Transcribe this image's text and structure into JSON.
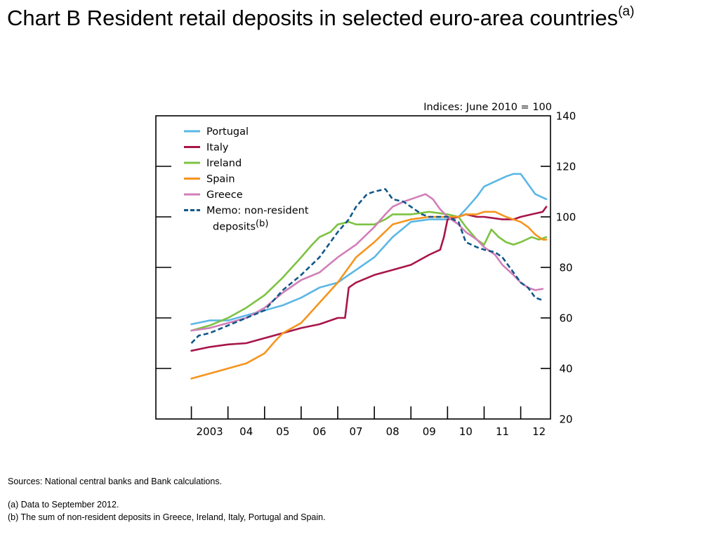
{
  "title": {
    "main": "Chart B  Resident retail deposits in selected euro-area countries",
    "sup": "(a)"
  },
  "notes": {
    "sources": "Sources:  National central banks and Bank calculations.",
    "note_a": "(a)  Data to September 2012.",
    "note_b": "(b)  The sum of non-resident deposits in Greece, Ireland, Italy, Portugal and Spain."
  },
  "chart_data": {
    "type": "line",
    "unit_label": "Indices:  June 2010 = 100",
    "xlabel": "",
    "ylabel": "",
    "x_tick_labels": [
      "2003",
      "04",
      "05",
      "06",
      "07",
      "08",
      "09",
      "10",
      "11",
      "12"
    ],
    "xlim": [
      2002.5,
      2012.9
    ],
    "ylim": [
      20,
      140
    ],
    "y_ticks": [
      20,
      40,
      60,
      80,
      100,
      120,
      140
    ],
    "y_axis_side": "right",
    "grid": false,
    "legend_position": "top-left",
    "series": [
      {
        "name": "Portugal",
        "color": "#5bb7e5",
        "dashed": false,
        "points": [
          [
            2003.0,
            57.5
          ],
          [
            2003.5,
            59
          ],
          [
            2004.0,
            59
          ],
          [
            2004.5,
            61
          ],
          [
            2005.0,
            63
          ],
          [
            2005.5,
            65
          ],
          [
            2006.0,
            68
          ],
          [
            2006.5,
            72
          ],
          [
            2007.0,
            74
          ],
          [
            2007.5,
            79
          ],
          [
            2008.0,
            84
          ],
          [
            2008.5,
            92
          ],
          [
            2009.0,
            98
          ],
          [
            2009.5,
            99
          ],
          [
            2010.0,
            99
          ],
          [
            2010.3,
            100
          ],
          [
            2010.5,
            103
          ],
          [
            2010.8,
            108
          ],
          [
            2011.0,
            112
          ],
          [
            2011.3,
            114
          ],
          [
            2011.6,
            116
          ],
          [
            2011.8,
            117
          ],
          [
            2012.0,
            117
          ],
          [
            2012.2,
            113
          ],
          [
            2012.4,
            109
          ],
          [
            2012.7,
            107
          ]
        ]
      },
      {
        "name": "Italy",
        "color": "#a8154a",
        "dashed": false,
        "points": [
          [
            2003.0,
            47
          ],
          [
            2003.5,
            48.5
          ],
          [
            2004.0,
            49.5
          ],
          [
            2004.5,
            50
          ],
          [
            2005.0,
            52
          ],
          [
            2005.5,
            54
          ],
          [
            2006.0,
            56
          ],
          [
            2006.5,
            57.5
          ],
          [
            2007.0,
            60
          ],
          [
            2007.2,
            60
          ],
          [
            2007.3,
            72
          ],
          [
            2007.5,
            74
          ],
          [
            2008.0,
            77
          ],
          [
            2008.5,
            79
          ],
          [
            2009.0,
            81
          ],
          [
            2009.5,
            85
          ],
          [
            2009.8,
            87
          ],
          [
            2009.9,
            92
          ],
          [
            2010.0,
            99
          ],
          [
            2010.3,
            100
          ],
          [
            2010.5,
            101
          ],
          [
            2010.8,
            100
          ],
          [
            2011.0,
            100
          ],
          [
            2011.5,
            99
          ],
          [
            2011.8,
            99
          ],
          [
            2012.0,
            100
          ],
          [
            2012.3,
            101
          ],
          [
            2012.6,
            102
          ],
          [
            2012.7,
            104
          ]
        ]
      },
      {
        "name": "Ireland",
        "color": "#7dc242",
        "dashed": false,
        "points": [
          [
            2003.0,
            55
          ],
          [
            2003.5,
            57
          ],
          [
            2004.0,
            60
          ],
          [
            2004.5,
            64
          ],
          [
            2005.0,
            69
          ],
          [
            2005.5,
            76
          ],
          [
            2006.0,
            84
          ],
          [
            2006.3,
            89
          ],
          [
            2006.5,
            92
          ],
          [
            2006.8,
            94
          ],
          [
            2007.0,
            97
          ],
          [
            2007.3,
            98
          ],
          [
            2007.5,
            97
          ],
          [
            2008.0,
            97
          ],
          [
            2008.3,
            99
          ],
          [
            2008.5,
            101
          ],
          [
            2008.8,
            101
          ],
          [
            2009.0,
            101
          ],
          [
            2009.5,
            102
          ],
          [
            2010.0,
            101
          ],
          [
            2010.3,
            100
          ],
          [
            2010.5,
            96
          ],
          [
            2010.8,
            91
          ],
          [
            2011.0,
            89
          ],
          [
            2011.2,
            95
          ],
          [
            2011.4,
            92
          ],
          [
            2011.6,
            90
          ],
          [
            2011.8,
            89
          ],
          [
            2012.0,
            90
          ],
          [
            2012.3,
            92
          ],
          [
            2012.5,
            91
          ],
          [
            2012.7,
            92
          ]
        ]
      },
      {
        "name": "Spain",
        "color": "#f7941d",
        "dashed": false,
        "points": [
          [
            2003.0,
            36
          ],
          [
            2003.5,
            38
          ],
          [
            2004.0,
            40
          ],
          [
            2004.5,
            42
          ],
          [
            2005.0,
            46
          ],
          [
            2005.3,
            51
          ],
          [
            2005.5,
            54
          ],
          [
            2006.0,
            58
          ],
          [
            2006.5,
            66
          ],
          [
            2007.0,
            74
          ],
          [
            2007.3,
            80
          ],
          [
            2007.5,
            84
          ],
          [
            2008.0,
            90
          ],
          [
            2008.5,
            97
          ],
          [
            2009.0,
            99
          ],
          [
            2009.5,
            100
          ],
          [
            2010.0,
            100
          ],
          [
            2010.3,
            100
          ],
          [
            2010.5,
            101
          ],
          [
            2010.8,
            101
          ],
          [
            2011.0,
            102
          ],
          [
            2011.3,
            102
          ],
          [
            2011.6,
            100
          ],
          [
            2011.8,
            99
          ],
          [
            2012.0,
            98
          ],
          [
            2012.2,
            96
          ],
          [
            2012.4,
            93
          ],
          [
            2012.6,
            91
          ],
          [
            2012.7,
            91
          ]
        ]
      },
      {
        "name": "Greece",
        "color": "#d17fb8",
        "dashed": false,
        "points": [
          [
            2003.0,
            55
          ],
          [
            2003.5,
            56
          ],
          [
            2004.0,
            58
          ],
          [
            2004.5,
            60
          ],
          [
            2005.0,
            64
          ],
          [
            2005.5,
            70
          ],
          [
            2006.0,
            75
          ],
          [
            2006.5,
            78
          ],
          [
            2007.0,
            84
          ],
          [
            2007.5,
            89
          ],
          [
            2008.0,
            96
          ],
          [
            2008.3,
            101
          ],
          [
            2008.5,
            104
          ],
          [
            2008.8,
            106
          ],
          [
            2009.0,
            107
          ],
          [
            2009.2,
            108
          ],
          [
            2009.4,
            109
          ],
          [
            2009.6,
            107
          ],
          [
            2009.8,
            103
          ],
          [
            2010.0,
            100
          ],
          [
            2010.3,
            97
          ],
          [
            2010.5,
            94
          ],
          [
            2010.8,
            91
          ],
          [
            2011.0,
            88
          ],
          [
            2011.3,
            85
          ],
          [
            2011.5,
            81
          ],
          [
            2011.8,
            77
          ],
          [
            2012.0,
            74
          ],
          [
            2012.2,
            72
          ],
          [
            2012.4,
            71
          ],
          [
            2012.6,
            71.5
          ]
        ]
      },
      {
        "name": "Memo:  non-resident deposits",
        "name_sup": "(b)",
        "color": "#11578a",
        "dashed": true,
        "points": [
          [
            2003.0,
            50
          ],
          [
            2003.2,
            53
          ],
          [
            2003.5,
            54
          ],
          [
            2004.0,
            57
          ],
          [
            2004.5,
            60
          ],
          [
            2005.0,
            63
          ],
          [
            2005.5,
            71
          ],
          [
            2006.0,
            77
          ],
          [
            2006.5,
            84
          ],
          [
            2007.0,
            94
          ],
          [
            2007.3,
            99
          ],
          [
            2007.5,
            104
          ],
          [
            2007.8,
            109
          ],
          [
            2008.0,
            110
          ],
          [
            2008.3,
            111
          ],
          [
            2008.5,
            107
          ],
          [
            2008.8,
            106
          ],
          [
            2009.0,
            104
          ],
          [
            2009.3,
            101
          ],
          [
            2009.5,
            100
          ],
          [
            2010.0,
            100
          ],
          [
            2010.3,
            98
          ],
          [
            2010.5,
            90
          ],
          [
            2010.8,
            88
          ],
          [
            2011.0,
            87
          ],
          [
            2011.3,
            86
          ],
          [
            2011.5,
            84
          ],
          [
            2011.8,
            78
          ],
          [
            2012.0,
            74
          ],
          [
            2012.2,
            72
          ],
          [
            2012.4,
            68
          ],
          [
            2012.6,
            67
          ]
        ]
      }
    ]
  }
}
